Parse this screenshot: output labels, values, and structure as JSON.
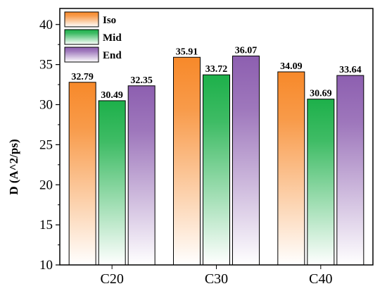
{
  "chart_data": {
    "type": "bar",
    "ylabel": "D (A^2/ps)",
    "xlabel": "",
    "categories": [
      "C20",
      "C30",
      "C40"
    ],
    "ylim": [
      10,
      42
    ],
    "yticks": [
      10,
      15,
      20,
      25,
      30,
      35,
      40
    ],
    "grid": false,
    "legend_position": "top-left",
    "series": [
      {
        "name": "Iso",
        "values": [
          32.79,
          35.91,
          34.09
        ],
        "color": "#f7892a"
      },
      {
        "name": "Mid",
        "values": [
          30.49,
          33.72,
          30.69
        ],
        "color": "#1db04a"
      },
      {
        "name": "End",
        "values": [
          32.35,
          36.07,
          33.64
        ],
        "color": "#8d5fb0"
      }
    ],
    "data_labels": [
      [
        "32.79",
        "30.49",
        "32.35"
      ],
      [
        "35.91",
        "33.72",
        "36.07"
      ],
      [
        "34.09",
        "30.69",
        "33.64"
      ]
    ]
  }
}
